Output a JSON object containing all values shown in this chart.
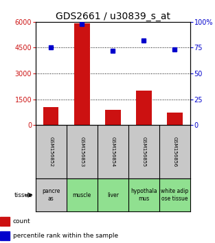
{
  "title": "GDS2661 / u30839_s_at",
  "samples": [
    "GSM156852",
    "GSM156853",
    "GSM156854",
    "GSM156855",
    "GSM156856"
  ],
  "tissues": [
    "pancre\nas",
    "muscle",
    "liver",
    "hypothala\nmus",
    "white adip\nose tissue"
  ],
  "counts": [
    1050,
    5900,
    900,
    2000,
    750
  ],
  "percentiles": [
    75,
    98,
    72,
    82,
    73
  ],
  "bar_color": "#cc1111",
  "dot_color": "#0000cc",
  "left_ylim": [
    0,
    6000
  ],
  "right_ylim": [
    0,
    100
  ],
  "left_yticks": [
    0,
    1500,
    3000,
    4500,
    6000
  ],
  "right_yticks": [
    0,
    25,
    50,
    75,
    100
  ],
  "right_yticklabels": [
    "0",
    "25",
    "50",
    "75",
    "100%"
  ],
  "grid_values": [
    1500,
    3000,
    4500
  ],
  "title_fontsize": 10,
  "axis_color_left": "#cc1111",
  "axis_color_right": "#0000cc",
  "sample_box_color": "#c8c8c8",
  "tissue_box_color_pancreas": "#c8c8c8",
  "tissue_box_color_other": "#90e090",
  "bar_width": 0.5,
  "marker_size": 5
}
